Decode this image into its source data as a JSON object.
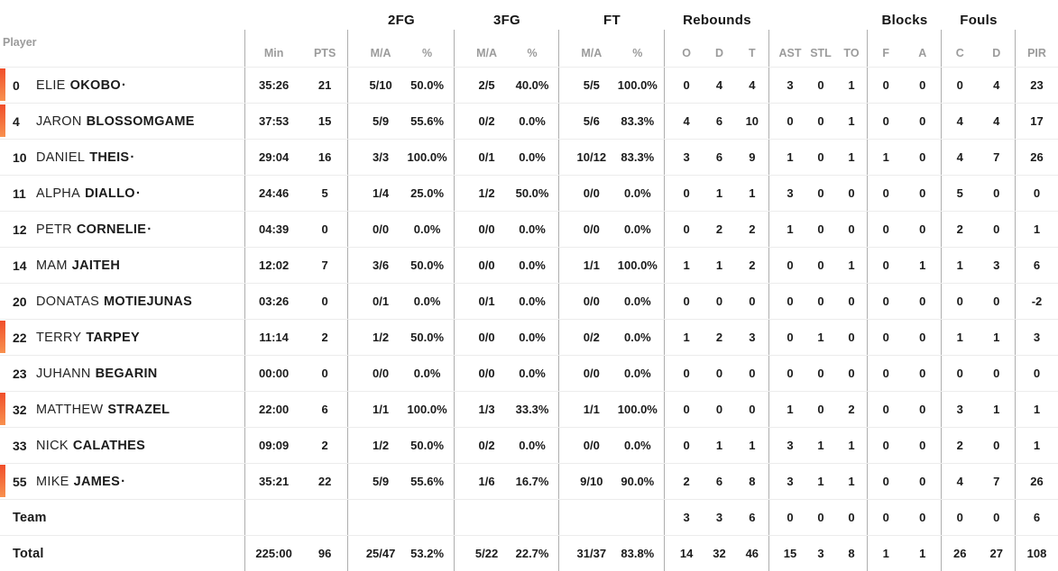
{
  "table": {
    "starter_mark": "·",
    "accent_color_top": "#f04e2a",
    "accent_color_bottom": "#f8914e",
    "header": {
      "player": "Player",
      "min": "Min",
      "pts": "PTS",
      "fg2": "2FG",
      "fg3": "3FG",
      "ft": "FT",
      "rebounds": "Rebounds",
      "blocks": "Blocks",
      "fouls": "Fouls",
      "ma": "M/A",
      "pct": "%",
      "o": "O",
      "d": "D",
      "t": "T",
      "ast": "AST",
      "stl": "STL",
      "to": "TO",
      "f": "F",
      "a": "A",
      "c": "C",
      "pir": "PIR"
    },
    "rows": [
      {
        "on_court": true,
        "starter": true,
        "num": "0",
        "first": "ELIE",
        "last": "OKOBO",
        "min": "35:26",
        "pts": "21",
        "f2ma": "5/10",
        "f2pct": "50.0%",
        "f3ma": "2/5",
        "f3pct": "40.0%",
        "ftma": "5/5",
        "ftpct": "100.0%",
        "ro": "0",
        "rd": "4",
        "rt": "4",
        "ast": "3",
        "stl": "0",
        "to": "1",
        "bf": "0",
        "ba": "0",
        "fc": "0",
        "fd": "4",
        "pir": "23"
      },
      {
        "on_court": true,
        "starter": false,
        "num": "4",
        "first": "JARON",
        "last": "BLOSSOMGAME",
        "min": "37:53",
        "pts": "15",
        "f2ma": "5/9",
        "f2pct": "55.6%",
        "f3ma": "0/2",
        "f3pct": "0.0%",
        "ftma": "5/6",
        "ftpct": "83.3%",
        "ro": "4",
        "rd": "6",
        "rt": "10",
        "ast": "0",
        "stl": "0",
        "to": "1",
        "bf": "0",
        "ba": "0",
        "fc": "4",
        "fd": "4",
        "pir": "17"
      },
      {
        "on_court": false,
        "starter": true,
        "num": "10",
        "first": "DANIEL",
        "last": "THEIS",
        "min": "29:04",
        "pts": "16",
        "f2ma": "3/3",
        "f2pct": "100.0%",
        "f3ma": "0/1",
        "f3pct": "0.0%",
        "ftma": "10/12",
        "ftpct": "83.3%",
        "ro": "3",
        "rd": "6",
        "rt": "9",
        "ast": "1",
        "stl": "0",
        "to": "1",
        "bf": "1",
        "ba": "0",
        "fc": "4",
        "fd": "7",
        "pir": "26"
      },
      {
        "on_court": false,
        "starter": true,
        "num": "11",
        "first": "ALPHA",
        "last": "DIALLO",
        "min": "24:46",
        "pts": "5",
        "f2ma": "1/4",
        "f2pct": "25.0%",
        "f3ma": "1/2",
        "f3pct": "50.0%",
        "ftma": "0/0",
        "ftpct": "0.0%",
        "ro": "0",
        "rd": "1",
        "rt": "1",
        "ast": "3",
        "stl": "0",
        "to": "0",
        "bf": "0",
        "ba": "0",
        "fc": "5",
        "fd": "0",
        "pir": "0"
      },
      {
        "on_court": false,
        "starter": true,
        "num": "12",
        "first": "PETR",
        "last": "CORNELIE",
        "min": "04:39",
        "pts": "0",
        "f2ma": "0/0",
        "f2pct": "0.0%",
        "f3ma": "0/0",
        "f3pct": "0.0%",
        "ftma": "0/0",
        "ftpct": "0.0%",
        "ro": "0",
        "rd": "2",
        "rt": "2",
        "ast": "1",
        "stl": "0",
        "to": "0",
        "bf": "0",
        "ba": "0",
        "fc": "2",
        "fd": "0",
        "pir": "1"
      },
      {
        "on_court": false,
        "starter": false,
        "num": "14",
        "first": "MAM",
        "last": "JAITEH",
        "min": "12:02",
        "pts": "7",
        "f2ma": "3/6",
        "f2pct": "50.0%",
        "f3ma": "0/0",
        "f3pct": "0.0%",
        "ftma": "1/1",
        "ftpct": "100.0%",
        "ro": "1",
        "rd": "1",
        "rt": "2",
        "ast": "0",
        "stl": "0",
        "to": "1",
        "bf": "0",
        "ba": "1",
        "fc": "1",
        "fd": "3",
        "pir": "6"
      },
      {
        "on_court": false,
        "starter": false,
        "num": "20",
        "first": "DONATAS",
        "last": "MOTIEJUNAS",
        "min": "03:26",
        "pts": "0",
        "f2ma": "0/1",
        "f2pct": "0.0%",
        "f3ma": "0/1",
        "f3pct": "0.0%",
        "ftma": "0/0",
        "ftpct": "0.0%",
        "ro": "0",
        "rd": "0",
        "rt": "0",
        "ast": "0",
        "stl": "0",
        "to": "0",
        "bf": "0",
        "ba": "0",
        "fc": "0",
        "fd": "0",
        "pir": "-2"
      },
      {
        "on_court": true,
        "starter": false,
        "num": "22",
        "first": "TERRY",
        "last": "TARPEY",
        "min": "11:14",
        "pts": "2",
        "f2ma": "1/2",
        "f2pct": "50.0%",
        "f3ma": "0/0",
        "f3pct": "0.0%",
        "ftma": "0/2",
        "ftpct": "0.0%",
        "ro": "1",
        "rd": "2",
        "rt": "3",
        "ast": "0",
        "stl": "1",
        "to": "0",
        "bf": "0",
        "ba": "0",
        "fc": "1",
        "fd": "1",
        "pir": "3"
      },
      {
        "on_court": false,
        "starter": false,
        "num": "23",
        "first": "JUHANN",
        "last": "BEGARIN",
        "min": "00:00",
        "pts": "0",
        "f2ma": "0/0",
        "f2pct": "0.0%",
        "f3ma": "0/0",
        "f3pct": "0.0%",
        "ftma": "0/0",
        "ftpct": "0.0%",
        "ro": "0",
        "rd": "0",
        "rt": "0",
        "ast": "0",
        "stl": "0",
        "to": "0",
        "bf": "0",
        "ba": "0",
        "fc": "0",
        "fd": "0",
        "pir": "0"
      },
      {
        "on_court": true,
        "starter": false,
        "num": "32",
        "first": "MATTHEW",
        "last": "STRAZEL",
        "min": "22:00",
        "pts": "6",
        "f2ma": "1/1",
        "f2pct": "100.0%",
        "f3ma": "1/3",
        "f3pct": "33.3%",
        "ftma": "1/1",
        "ftpct": "100.0%",
        "ro": "0",
        "rd": "0",
        "rt": "0",
        "ast": "1",
        "stl": "0",
        "to": "2",
        "bf": "0",
        "ba": "0",
        "fc": "3",
        "fd": "1",
        "pir": "1"
      },
      {
        "on_court": false,
        "starter": false,
        "num": "33",
        "first": "NICK",
        "last": "CALATHES",
        "min": "09:09",
        "pts": "2",
        "f2ma": "1/2",
        "f2pct": "50.0%",
        "f3ma": "0/2",
        "f3pct": "0.0%",
        "ftma": "0/0",
        "ftpct": "0.0%",
        "ro": "0",
        "rd": "1",
        "rt": "1",
        "ast": "3",
        "stl": "1",
        "to": "1",
        "bf": "0",
        "ba": "0",
        "fc": "2",
        "fd": "0",
        "pir": "1"
      },
      {
        "on_court": true,
        "starter": true,
        "num": "55",
        "first": "MIKE",
        "last": "JAMES",
        "min": "35:21",
        "pts": "22",
        "f2ma": "5/9",
        "f2pct": "55.6%",
        "f3ma": "1/6",
        "f3pct": "16.7%",
        "ftma": "9/10",
        "ftpct": "90.0%",
        "ro": "2",
        "rd": "6",
        "rt": "8",
        "ast": "3",
        "stl": "1",
        "to": "1",
        "bf": "0",
        "ba": "0",
        "fc": "4",
        "fd": "7",
        "pir": "26"
      },
      {
        "label": "Team",
        "ro": "3",
        "rd": "3",
        "rt": "6",
        "ast": "0",
        "stl": "0",
        "to": "0",
        "bf": "0",
        "ba": "0",
        "fc": "0",
        "fd": "0",
        "pir": "6"
      },
      {
        "label": "Total",
        "min": "225:00",
        "pts": "96",
        "f2ma": "25/47",
        "f2pct": "53.2%",
        "f3ma": "5/22",
        "f3pct": "22.7%",
        "ftma": "31/37",
        "ftpct": "83.8%",
        "ro": "14",
        "rd": "32",
        "rt": "46",
        "ast": "15",
        "stl": "3",
        "to": "8",
        "bf": "1",
        "ba": "1",
        "fc": "26",
        "fd": "27",
        "pir": "108"
      }
    ]
  }
}
